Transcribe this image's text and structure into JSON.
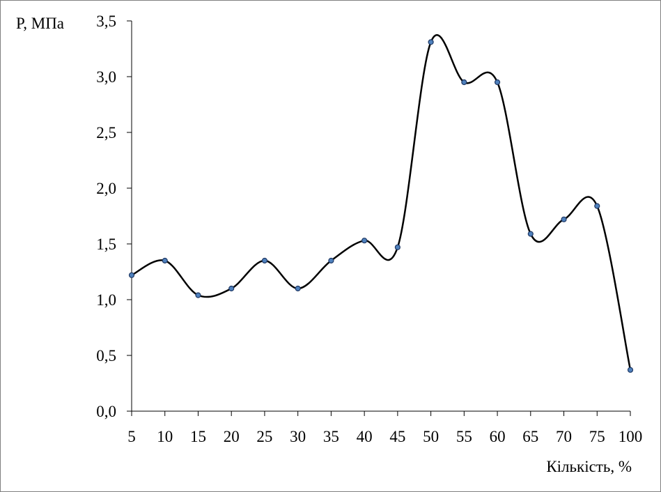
{
  "chart_data": {
    "type": "line",
    "title": "",
    "xlabel": "Кількість, %",
    "ylabel": "P, МПа",
    "categories": [
      "5",
      "10",
      "15",
      "20",
      "25",
      "30",
      "35",
      "40",
      "45",
      "50",
      "55",
      "60",
      "65",
      "70",
      "75",
      "100"
    ],
    "series": [
      {
        "values": [
          1.22,
          1.35,
          1.04,
          1.1,
          1.35,
          1.1,
          1.35,
          1.53,
          1.47,
          3.31,
          2.95,
          2.95,
          1.59,
          1.72,
          1.84,
          0.37
        ]
      }
    ],
    "ylim": [
      0,
      3.5
    ],
    "yticks": [
      "0,0",
      "0,5",
      "1,0",
      "1,5",
      "2,0",
      "2,5",
      "3,0",
      "3,5"
    ],
    "grid": false,
    "legend": "none",
    "colors": {
      "line": "#000000",
      "marker_fill": "#4f81bd",
      "marker_stroke": "#1f3864",
      "axis": "#000000"
    }
  }
}
